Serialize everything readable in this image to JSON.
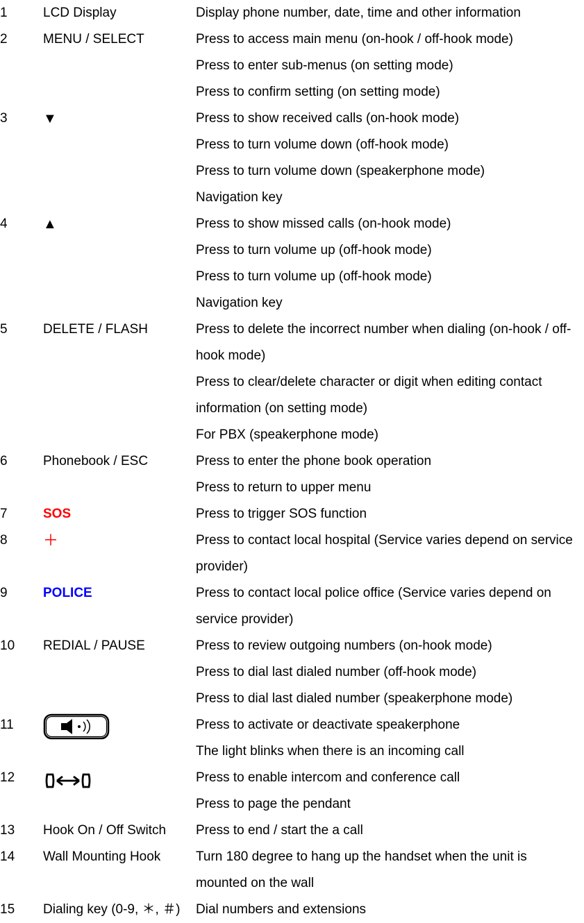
{
  "text_color": "#000000",
  "background_color": "#ffffff",
  "red_color": "#ff0000",
  "blue_color": "#0000ff",
  "font_size": 19,
  "line_height": 2.0,
  "rows": [
    {
      "num": "1",
      "name": "LCD Display",
      "name_style": "plain",
      "desc": [
        "Display phone number, date, time and other information"
      ]
    },
    {
      "num": "2",
      "name": "MENU / SELECT",
      "name_style": "plain",
      "desc": [
        "Press to access main menu (on-hook / off-hook mode)",
        "Press to enter sub-menus (on setting mode)",
        "Press to confirm setting (on setting mode)"
      ]
    },
    {
      "num": "3",
      "name": "▼",
      "name_style": "arrow",
      "desc": [
        "Press to show received calls (on-hook mode)",
        "Press to turn volume down (off-hook mode)",
        "Press to turn volume down (speakerphone mode)",
        "Navigation key"
      ]
    },
    {
      "num": "4",
      "name": "▲",
      "name_style": "arrow",
      "desc": [
        "Press to show missed calls (on-hook mode)",
        "Press to turn volume up (off-hook mode)",
        "Press to turn volume up (off-hook mode)",
        "Navigation key"
      ]
    },
    {
      "num": "5",
      "name": "DELETE / FLASH",
      "name_style": "plain",
      "desc": [
        "Press to delete the incorrect number when dialing (on-hook / off-hook mode)",
        "Press to clear/delete character or digit when editing contact information (on setting mode)",
        "For PBX (speakerphone mode)"
      ]
    },
    {
      "num": "6",
      "name": "Phonebook / ESC",
      "name_style": "plain",
      "desc": [
        "Press to enter the phone book operation",
        "Press to return to upper menu"
      ]
    },
    {
      "num": "7",
      "name": "SOS",
      "name_style": "bold-red",
      "desc": [
        "Press to trigger SOS function"
      ]
    },
    {
      "num": "8",
      "name": "＋",
      "name_style": "plus-red",
      "desc": [
        "Press to contact local hospital (Service varies depend on service provider)"
      ]
    },
    {
      "num": "9",
      "name": "POLICE",
      "name_style": "bold-blue",
      "desc": [
        "Press to contact local police office (Service varies depend on service provider)"
      ]
    },
    {
      "num": "10",
      "name": "REDIAL / PAUSE",
      "name_style": "plain",
      "desc": [
        "Press to review outgoing numbers (on-hook mode)",
        "Press to dial last dialed number (off-hook mode)",
        "Press to dial last dialed number (speakerphone mode)"
      ]
    },
    {
      "num": "11",
      "name": "__SPEAKER_ICON__",
      "name_style": "icon-speaker",
      "desc": [
        "Press to activate or deactivate speakerphone",
        "The light blinks when there is an incoming call"
      ]
    },
    {
      "num": "12",
      "name": "__INTERCOM_ICON__",
      "name_style": "icon-intercom",
      "desc": [
        "Press to enable intercom and conference call",
        "Press to page the pendant"
      ]
    },
    {
      "num": "13",
      "name": "Hook On / Off Switch",
      "name_style": "plain",
      "desc": [
        "Press to end / start the a call"
      ]
    },
    {
      "num": "14",
      "name": "Wall Mounting Hook",
      "name_style": "plain",
      "desc": [
        "Turn 180 degree to hang up the handset when the unit is mounted on the wall"
      ]
    },
    {
      "num": "15",
      "name": "Dialing key (0-9, ＊, ＃)",
      "name_style": "plain",
      "desc": [
        "Dial numbers and extensions"
      ]
    }
  ]
}
